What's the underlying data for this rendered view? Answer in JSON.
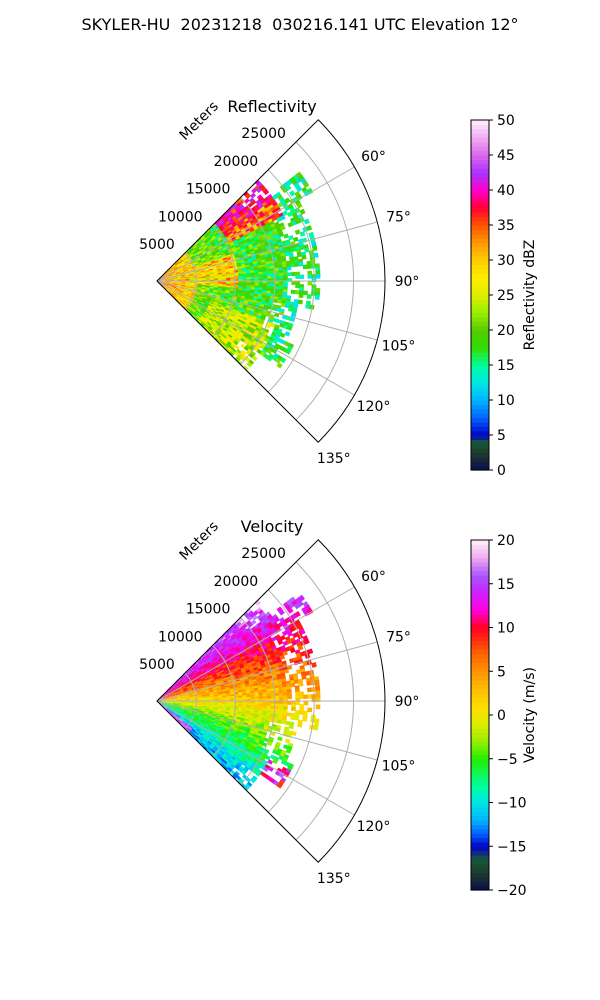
{
  "figure": {
    "title": "SKYLER-HU  20231218  030216.141 UTC Elevation 12°"
  },
  "chart_data": [
    {
      "type": "polar-sector",
      "title": "Reflectivity",
      "range_label": "Meters",
      "radial_ticks": [
        5000,
        10000,
        15000,
        20000,
        25000
      ],
      "radial_tick_labels": [
        "5000",
        "10000",
        "15000",
        "20000",
        "25000"
      ],
      "azimuth_ticks": [
        60,
        75,
        90,
        105,
        120,
        135
      ],
      "azimuth_tick_labels": [
        "60°",
        "75°",
        "90°",
        "105°",
        "120°",
        "135°"
      ],
      "azimuth_range": [
        45,
        135
      ],
      "range_max": 29000,
      "grid": true,
      "colorbar": {
        "label": "Reflectivity dBZ",
        "min": 0,
        "max": 50,
        "ticks": [
          0,
          5,
          10,
          15,
          20,
          25,
          30,
          35,
          40,
          45,
          50
        ],
        "tick_labels": [
          "0",
          "5",
          "10",
          "15",
          "20",
          "25",
          "30",
          "35",
          "40",
          "45",
          "50"
        ],
        "stops": [
          {
            "v": 0,
            "c": "#0b0b4d"
          },
          {
            "v": 2.5,
            "c": "#1c3c2c"
          },
          {
            "v": 4,
            "c": "#1a5a3a"
          },
          {
            "v": 5,
            "c": "#0000c8"
          },
          {
            "v": 7.5,
            "c": "#0064ff"
          },
          {
            "v": 10,
            "c": "#00b4ff"
          },
          {
            "v": 12.5,
            "c": "#00e6e6"
          },
          {
            "v": 15,
            "c": "#00ff9a"
          },
          {
            "v": 17.5,
            "c": "#33dd00"
          },
          {
            "v": 20,
            "c": "#55cc00"
          },
          {
            "v": 22.5,
            "c": "#99ee00"
          },
          {
            "v": 25,
            "c": "#ddee00"
          },
          {
            "v": 27.5,
            "c": "#ffee00"
          },
          {
            "v": 30,
            "c": "#ffcc00"
          },
          {
            "v": 32.5,
            "c": "#ff9900"
          },
          {
            "v": 35,
            "c": "#ff5500"
          },
          {
            "v": 37.5,
            "c": "#ff0033"
          },
          {
            "v": 40,
            "c": "#ff00cc"
          },
          {
            "v": 42.5,
            "c": "#aa33ff"
          },
          {
            "v": 45,
            "c": "#dd66ee"
          },
          {
            "v": 47.5,
            "c": "#f0aaf0"
          },
          {
            "v": 50,
            "c": "#fff0ff"
          }
        ]
      }
    },
    {
      "type": "polar-sector",
      "title": "Velocity",
      "range_label": "Meters",
      "radial_ticks": [
        5000,
        10000,
        15000,
        20000,
        25000
      ],
      "radial_tick_labels": [
        "5000",
        "10000",
        "15000",
        "20000",
        "25000"
      ],
      "azimuth_ticks": [
        60,
        75,
        90,
        105,
        120,
        135
      ],
      "azimuth_tick_labels": [
        "60°",
        "75°",
        "90°",
        "105°",
        "120°",
        "135°"
      ],
      "azimuth_range": [
        45,
        135
      ],
      "range_max": 29000,
      "grid": true,
      "colorbar": {
        "label": "Velocity (m/s)",
        "min": -20,
        "max": 20,
        "ticks": [
          -20,
          -15,
          -10,
          -5,
          0,
          5,
          10,
          15,
          20
        ],
        "tick_labels": [
          "−20",
          "−15",
          "−10",
          "−5",
          "0",
          "5",
          "10",
          "15",
          "20"
        ],
        "stops": [
          {
            "v": -20,
            "c": "#0b0b4d"
          },
          {
            "v": -18,
            "c": "#1c3c2c"
          },
          {
            "v": -16.5,
            "c": "#1a5a3a"
          },
          {
            "v": -15,
            "c": "#0000c8"
          },
          {
            "v": -13.5,
            "c": "#0064ff"
          },
          {
            "v": -12,
            "c": "#00b4ff"
          },
          {
            "v": -10,
            "c": "#00e6e6"
          },
          {
            "v": -8,
            "c": "#00ff9a"
          },
          {
            "v": -5,
            "c": "#22ee00"
          },
          {
            "v": -3,
            "c": "#99ee00"
          },
          {
            "v": -1,
            "c": "#ddee00"
          },
          {
            "v": 1,
            "c": "#ffdd00"
          },
          {
            "v": 4,
            "c": "#ffaa00"
          },
          {
            "v": 7,
            "c": "#ff6600"
          },
          {
            "v": 10,
            "c": "#ff0022"
          },
          {
            "v": 12,
            "c": "#ff00dd"
          },
          {
            "v": 14,
            "c": "#cc22ff"
          },
          {
            "v": 16,
            "c": "#aa55ff"
          },
          {
            "v": 18,
            "c": "#f0aaf0"
          },
          {
            "v": 20,
            "c": "#fff0ff"
          }
        ]
      }
    }
  ]
}
